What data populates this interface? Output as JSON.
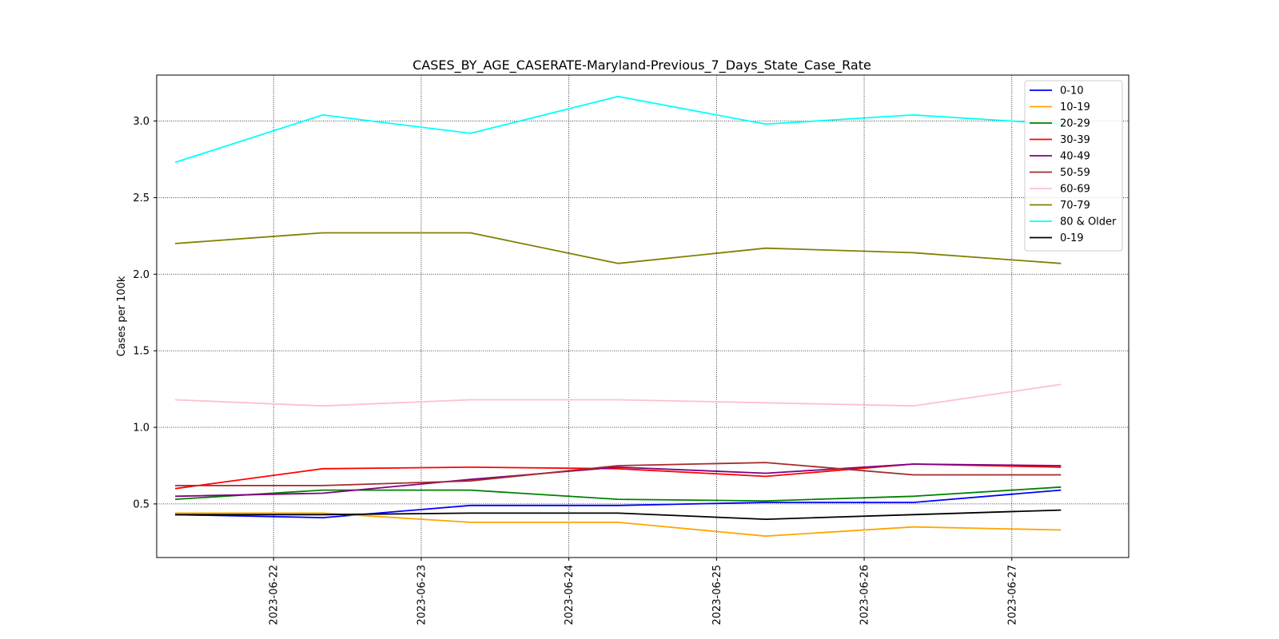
{
  "chart_data": {
    "type": "line",
    "title": "CASES_BY_AGE_CASERATE-Maryland-Previous_7_Days_State_Case_Rate",
    "xlabel": "",
    "ylabel": "Cases per 100k",
    "x": [
      "2023-06-21 08:00",
      "2023-06-22 08:00",
      "2023-06-23 08:00",
      "2023-06-24 08:00",
      "2023-06-25 08:00",
      "2023-06-26 08:00",
      "2023-06-27 08:00"
    ],
    "xlim": [
      "2023-06-21 05:00",
      "2023-06-27 19:00"
    ],
    "xticks": [
      "2023-06-22",
      "2023-06-23",
      "2023-06-24",
      "2023-06-25",
      "2023-06-26",
      "2023-06-27"
    ],
    "ylim": [
      0.15,
      3.3
    ],
    "yticks": [
      "0.5",
      "1.0",
      "1.5",
      "2.0",
      "2.5",
      "3.0"
    ],
    "grid": true,
    "legend_position": "top-right",
    "series": [
      {
        "name": "0-10",
        "color": "#0000ff",
        "values": [
          0.43,
          0.41,
          0.49,
          0.49,
          0.51,
          0.51,
          0.59
        ]
      },
      {
        "name": "10-19",
        "color": "#ffa500",
        "values": [
          0.44,
          0.44,
          0.38,
          0.38,
          0.29,
          0.35,
          0.33
        ]
      },
      {
        "name": "20-29",
        "color": "#008000",
        "values": [
          0.53,
          0.59,
          0.59,
          0.53,
          0.52,
          0.55,
          0.61
        ]
      },
      {
        "name": "30-39",
        "color": "#ff0000",
        "values": [
          0.6,
          0.73,
          0.74,
          0.73,
          0.68,
          0.76,
          0.74
        ]
      },
      {
        "name": "40-49",
        "color": "#800080",
        "values": [
          0.55,
          0.57,
          0.66,
          0.74,
          0.7,
          0.76,
          0.75
        ]
      },
      {
        "name": "50-59",
        "color": "#a52a2a",
        "values": [
          0.62,
          0.62,
          0.65,
          0.75,
          0.77,
          0.69,
          0.69
        ]
      },
      {
        "name": "60-69",
        "color": "#ffc0cb",
        "values": [
          1.18,
          1.14,
          1.18,
          1.18,
          1.16,
          1.14,
          1.28
        ]
      },
      {
        "name": "70-79",
        "color": "#808000",
        "values": [
          2.2,
          2.27,
          2.27,
          2.07,
          2.17,
          2.14,
          2.07
        ]
      },
      {
        "name": "80 & Older",
        "color": "#00ffff",
        "values": [
          2.73,
          3.04,
          2.92,
          3.16,
          2.98,
          3.04,
          2.98
        ]
      },
      {
        "name": "0-19",
        "color": "#000000",
        "values": [
          0.43,
          0.43,
          0.44,
          0.44,
          0.4,
          0.43,
          0.46
        ]
      }
    ]
  }
}
